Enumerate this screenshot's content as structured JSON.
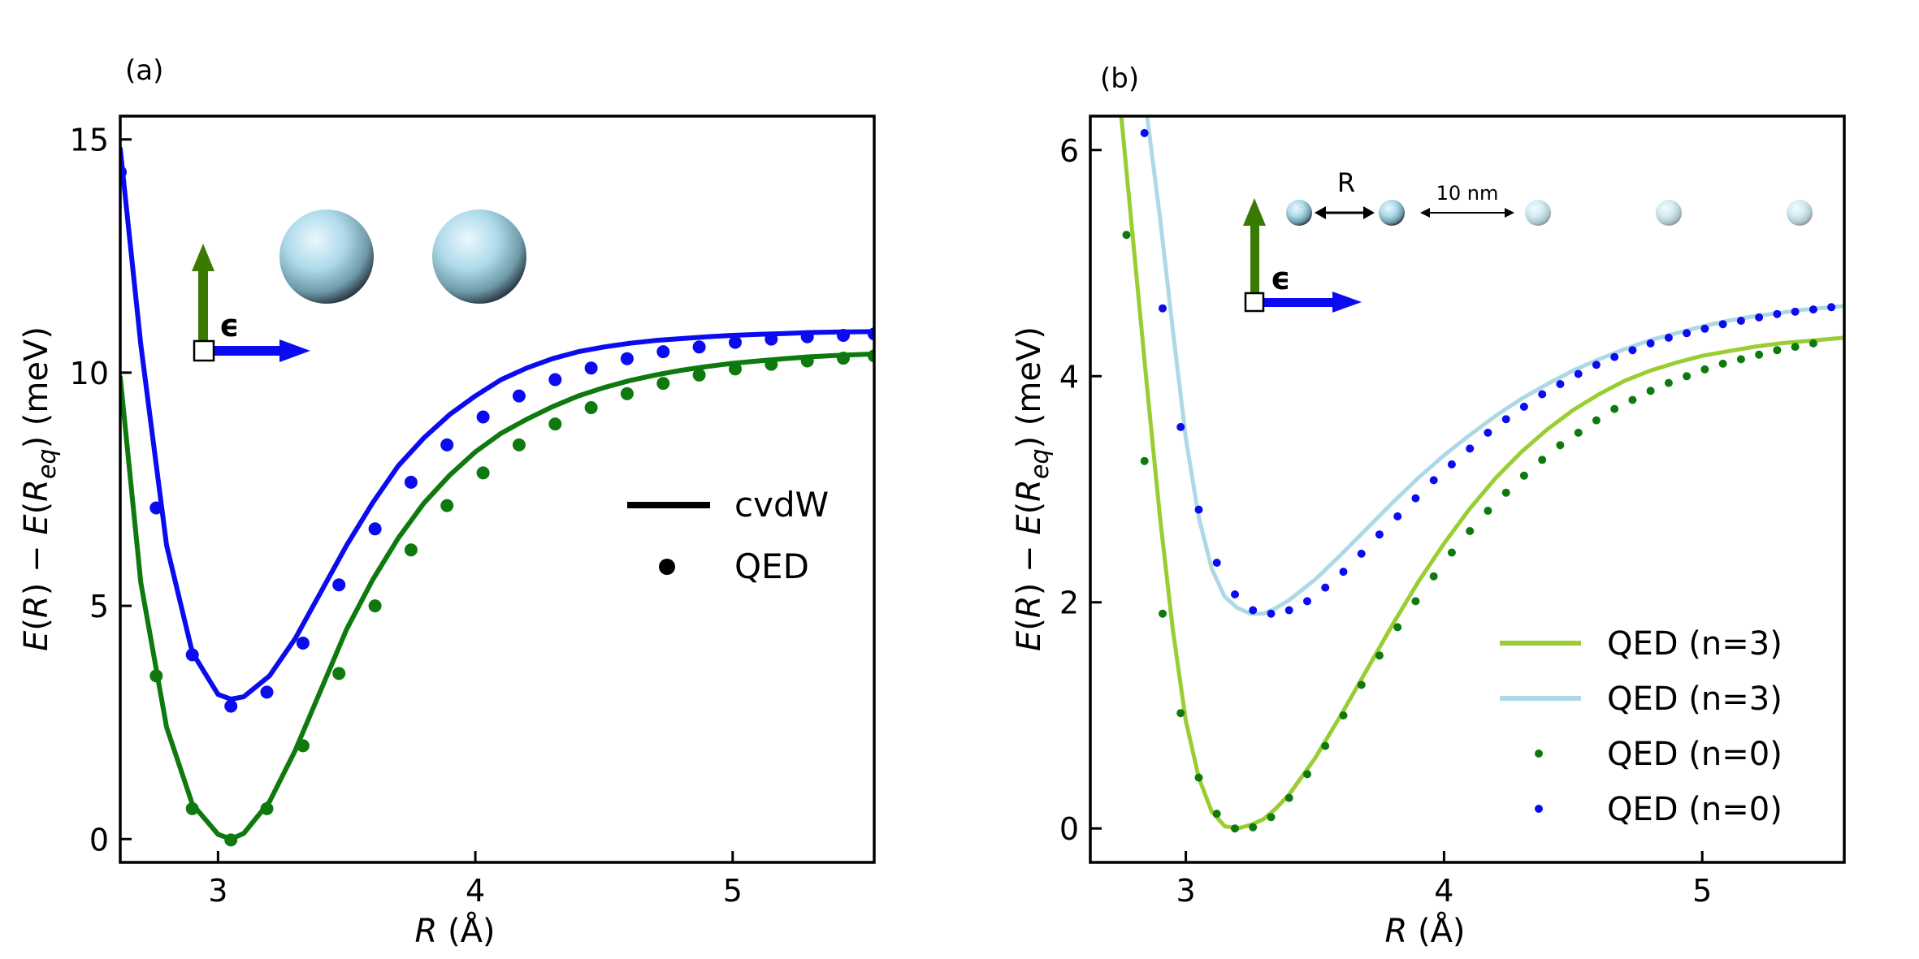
{
  "colors": {
    "blue": "#0b0bf2",
    "green": "#0e7a0e",
    "yellowgreen": "#9acd32",
    "lightblue": "#add8e6",
    "dark_green_arrow": "#3a7a00",
    "arrow_blue": "#0b0bf2",
    "sphere_light": "#d8f0fa",
    "sphere_mid": "#a9d5e6",
    "sphere_dark": "#2a3a44"
  },
  "chart_data": [
    {
      "type": "line",
      "panel_label": "(a)",
      "xlabel": "R (Å)",
      "ylabel": "E(R) − E(R_eq) (meV)",
      "xlim": [
        2.62,
        5.55
      ],
      "ylim": [
        -0.5,
        15.5
      ],
      "xticks": [
        3,
        4,
        5
      ],
      "yticks": [
        0,
        5,
        10,
        15
      ],
      "legend": {
        "placement": "center-right",
        "entries": [
          {
            "label": "cvdW",
            "style": "line"
          },
          {
            "label": "QED",
            "style": "marker"
          }
        ]
      },
      "inset": {
        "description_icons": [
          "polarization-arrows",
          "two-spheres"
        ],
        "epsilon_label": "ϵ"
      },
      "series": [
        {
          "name": "cvdW (blue)",
          "color": "blue",
          "style": "line",
          "x": [
            2.62,
            2.7,
            2.8,
            2.9,
            3.0,
            3.05,
            3.1,
            3.2,
            3.3,
            3.4,
            3.5,
            3.6,
            3.7,
            3.8,
            3.9,
            4.0,
            4.1,
            4.2,
            4.3,
            4.4,
            4.5,
            4.6,
            4.7,
            4.8,
            4.9,
            5.0,
            5.1,
            5.2,
            5.3,
            5.4,
            5.55
          ],
          "y": [
            14.8,
            10.6,
            6.3,
            4.0,
            3.1,
            3.0,
            3.05,
            3.5,
            4.3,
            5.3,
            6.3,
            7.2,
            8.0,
            8.6,
            9.1,
            9.5,
            9.85,
            10.1,
            10.3,
            10.45,
            10.55,
            10.63,
            10.69,
            10.73,
            10.77,
            10.8,
            10.82,
            10.84,
            10.86,
            10.87,
            10.88
          ]
        },
        {
          "name": "QED (blue)",
          "color": "blue",
          "style": "marker",
          "x": [
            2.62,
            2.76,
            2.9,
            3.05,
            3.19,
            3.33,
            3.47,
            3.61,
            3.75,
            3.89,
            4.03,
            4.17,
            4.31,
            4.45,
            4.59,
            4.73,
            4.87,
            5.01,
            5.15,
            5.29,
            5.43,
            5.55
          ],
          "y": [
            14.3,
            7.1,
            3.95,
            2.85,
            3.15,
            4.2,
            5.45,
            6.65,
            7.65,
            8.45,
            9.05,
            9.5,
            9.85,
            10.1,
            10.3,
            10.45,
            10.55,
            10.65,
            10.72,
            10.77,
            10.8,
            10.83
          ]
        },
        {
          "name": "cvdW (green)",
          "color": "green",
          "style": "line",
          "x": [
            2.62,
            2.7,
            2.8,
            2.9,
            3.0,
            3.05,
            3.1,
            3.2,
            3.3,
            3.4,
            3.5,
            3.6,
            3.7,
            3.8,
            3.9,
            4.0,
            4.1,
            4.2,
            4.3,
            4.4,
            4.5,
            4.6,
            4.7,
            4.8,
            4.9,
            5.0,
            5.1,
            5.2,
            5.3,
            5.4,
            5.55
          ],
          "y": [
            9.9,
            5.5,
            2.4,
            0.75,
            0.1,
            0.0,
            0.12,
            0.8,
            1.9,
            3.2,
            4.5,
            5.55,
            6.45,
            7.2,
            7.8,
            8.3,
            8.7,
            9.0,
            9.27,
            9.5,
            9.68,
            9.83,
            9.95,
            10.05,
            10.13,
            10.2,
            10.25,
            10.3,
            10.34,
            10.37,
            10.4
          ]
        },
        {
          "name": "QED (green)",
          "color": "green",
          "style": "marker",
          "x": [
            2.76,
            2.9,
            3.05,
            3.19,
            3.33,
            3.47,
            3.61,
            3.75,
            3.89,
            4.03,
            4.17,
            4.31,
            4.45,
            4.59,
            4.73,
            4.87,
            5.01,
            5.15,
            5.29,
            5.43,
            5.55
          ],
          "y": [
            3.5,
            0.65,
            -0.02,
            0.65,
            2.0,
            3.55,
            5.0,
            6.2,
            7.15,
            7.85,
            8.45,
            8.9,
            9.25,
            9.55,
            9.77,
            9.95,
            10.08,
            10.18,
            10.25,
            10.31,
            10.36
          ]
        }
      ]
    },
    {
      "type": "line",
      "panel_label": "(b)",
      "xlabel": "R (Å)",
      "ylabel": "E(R) − E(R_eq) (meV)",
      "xlim": [
        2.63,
        5.55
      ],
      "ylim": [
        -0.3,
        6.3
      ],
      "xticks": [
        3,
        4,
        5
      ],
      "yticks": [
        0,
        2,
        4,
        6
      ],
      "legend": {
        "placement": "bottom-right",
        "entries": [
          {
            "label": "QED (n=3)",
            "style": "line",
            "color": "yellowgreen"
          },
          {
            "label": "QED (n=3)",
            "style": "line",
            "color": "lightblue"
          },
          {
            "label": "QED (n=0)",
            "style": "marker",
            "color": "green"
          },
          {
            "label": "QED (n=0)",
            "style": "marker",
            "color": "blue"
          }
        ]
      },
      "inset": {
        "r_label": "R",
        "scale_label": "10 nm",
        "epsilon_label": "ϵ"
      },
      "series": [
        {
          "name": "QED (n=3) yellowgreen",
          "color": "yellowgreen",
          "style": "line",
          "x": [
            2.75,
            2.8,
            2.85,
            2.9,
            2.95,
            3.0,
            3.05,
            3.1,
            3.15,
            3.2,
            3.25,
            3.3,
            3.35,
            3.4,
            3.5,
            3.6,
            3.7,
            3.8,
            3.9,
            4.0,
            4.1,
            4.2,
            4.3,
            4.4,
            4.5,
            4.6,
            4.7,
            4.8,
            4.9,
            5.0,
            5.1,
            5.2,
            5.3,
            5.4,
            5.55
          ],
          "y": [
            6.3,
            5.1,
            3.9,
            2.75,
            1.75,
            0.95,
            0.45,
            0.15,
            0.02,
            0.0,
            0.03,
            0.08,
            0.18,
            0.3,
            0.62,
            1.0,
            1.4,
            1.8,
            2.18,
            2.52,
            2.83,
            3.1,
            3.33,
            3.53,
            3.7,
            3.84,
            3.96,
            4.05,
            4.12,
            4.18,
            4.22,
            4.26,
            4.29,
            4.31,
            4.34
          ]
        },
        {
          "name": "QED (n=3) lightblue",
          "color": "lightblue",
          "style": "line",
          "x": [
            2.85,
            2.9,
            2.95,
            3.0,
            3.05,
            3.1,
            3.15,
            3.2,
            3.25,
            3.3,
            3.35,
            3.4,
            3.5,
            3.6,
            3.7,
            3.8,
            3.9,
            4.0,
            4.1,
            4.2,
            4.3,
            4.4,
            4.5,
            4.6,
            4.7,
            4.8,
            4.9,
            5.0,
            5.1,
            5.2,
            5.3,
            5.4,
            5.55
          ],
          "y": [
            6.3,
            5.4,
            4.4,
            3.45,
            2.75,
            2.3,
            2.05,
            1.95,
            1.9,
            1.9,
            1.95,
            2.02,
            2.2,
            2.42,
            2.65,
            2.88,
            3.1,
            3.3,
            3.48,
            3.65,
            3.8,
            3.93,
            4.05,
            4.15,
            4.24,
            4.32,
            4.38,
            4.44,
            4.49,
            4.53,
            4.56,
            4.59,
            4.62
          ]
        },
        {
          "name": "QED (n=0) green",
          "color": "green",
          "style": "marker",
          "x": [
            2.77,
            2.84,
            2.91,
            2.98,
            3.05,
            3.12,
            3.19,
            3.26,
            3.33,
            3.4,
            3.47,
            3.54,
            3.61,
            3.68,
            3.75,
            3.82,
            3.89,
            3.96,
            4.03,
            4.1,
            4.17,
            4.24,
            4.31,
            4.38,
            4.45,
            4.52,
            4.59,
            4.66,
            4.73,
            4.8,
            4.87,
            4.94,
            5.01,
            5.08,
            5.15,
            5.22,
            5.29,
            5.36,
            5.43
          ],
          "y": [
            5.25,
            3.25,
            1.9,
            1.02,
            0.45,
            0.13,
            0.0,
            0.01,
            0.1,
            0.27,
            0.48,
            0.73,
            1.0,
            1.27,
            1.53,
            1.78,
            2.01,
            2.23,
            2.44,
            2.63,
            2.81,
            2.97,
            3.12,
            3.26,
            3.39,
            3.5,
            3.61,
            3.71,
            3.79,
            3.87,
            3.94,
            4.0,
            4.06,
            4.11,
            4.15,
            4.19,
            4.23,
            4.26,
            4.29
          ]
        },
        {
          "name": "QED (n=0) blue",
          "color": "blue",
          "style": "marker",
          "x": [
            2.84,
            2.91,
            2.98,
            3.05,
            3.12,
            3.19,
            3.26,
            3.33,
            3.4,
            3.47,
            3.54,
            3.61,
            3.68,
            3.75,
            3.82,
            3.89,
            3.96,
            4.03,
            4.1,
            4.17,
            4.24,
            4.31,
            4.38,
            4.45,
            4.52,
            4.59,
            4.66,
            4.73,
            4.8,
            4.87,
            4.94,
            5.01,
            5.08,
            5.15,
            5.22,
            5.29,
            5.36,
            5.43,
            5.5
          ],
          "y": [
            6.15,
            4.6,
            3.55,
            2.82,
            2.35,
            2.07,
            1.93,
            1.9,
            1.93,
            2.01,
            2.13,
            2.27,
            2.43,
            2.6,
            2.76,
            2.92,
            3.08,
            3.22,
            3.36,
            3.5,
            3.62,
            3.73,
            3.84,
            3.93,
            4.02,
            4.1,
            4.17,
            4.23,
            4.29,
            4.34,
            4.38,
            4.42,
            4.46,
            4.49,
            4.52,
            4.55,
            4.57,
            4.59,
            4.61
          ]
        }
      ]
    }
  ]
}
